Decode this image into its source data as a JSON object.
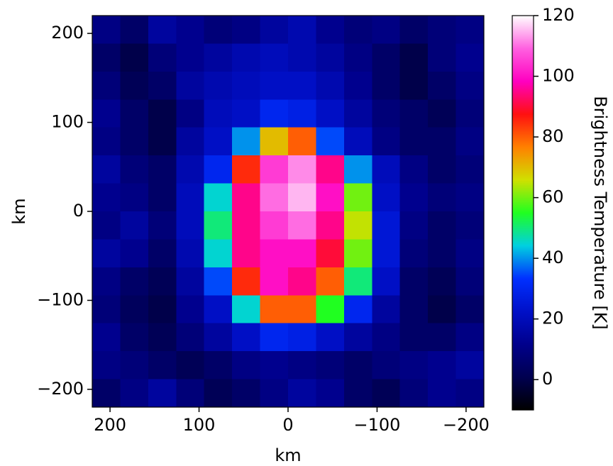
{
  "chart_data": {
    "type": "heatmap",
    "xlabel": "km",
    "ylabel": "km",
    "xlim": [
      220,
      -220
    ],
    "ylim": [
      -220,
      220
    ],
    "xticks": [
      200,
      100,
      0,
      {
        "value": -100,
        "label": "−100"
      },
      {
        "value": -200,
        "label": "−200"
      }
    ],
    "yticks": [
      {
        "value": -200,
        "label": "−200"
      },
      {
        "value": -100,
        "label": "−100"
      },
      0,
      100,
      200
    ],
    "colorbar_label": "Brightness Temperature [K]",
    "clim": [
      -10,
      120
    ],
    "cticks": [
      0,
      20,
      40,
      60,
      80,
      100,
      120
    ],
    "colormap": [
      "#000000",
      "#000050",
      "#00008c",
      "#0010c8",
      "#0030ff",
      "#00d0e0",
      "#20ff20",
      "#d0e000",
      "#ff8000",
      "#ff1010",
      "#ff00c0",
      "#ff60e0",
      "#ffffff"
    ],
    "values": [
      [
        10,
        5,
        15,
        12,
        8,
        10,
        15,
        18,
        12,
        8,
        10,
        5,
        8,
        10
      ],
      [
        5,
        0,
        8,
        12,
        15,
        18,
        20,
        18,
        15,
        10,
        5,
        0,
        8,
        12
      ],
      [
        8,
        2,
        5,
        15,
        18,
        20,
        22,
        22,
        18,
        12,
        5,
        0,
        5,
        10
      ],
      [
        12,
        5,
        0,
        10,
        20,
        22,
        30,
        28,
        22,
        15,
        8,
        5,
        2,
        8
      ],
      [
        10,
        5,
        0,
        15,
        22,
        40,
        70,
        80,
        35,
        20,
        10,
        5,
        5,
        10
      ],
      [
        15,
        8,
        5,
        18,
        30,
        85,
        105,
        112,
        95,
        40,
        20,
        10,
        5,
        8
      ],
      [
        12,
        10,
        5,
        20,
        45,
        95,
        110,
        115,
        100,
        60,
        22,
        12,
        8,
        10
      ],
      [
        10,
        15,
        8,
        20,
        50,
        95,
        105,
        110,
        95,
        65,
        25,
        10,
        5,
        8
      ],
      [
        15,
        12,
        5,
        18,
        45,
        95,
        100,
        100,
        90,
        60,
        25,
        8,
        5,
        10
      ],
      [
        10,
        5,
        2,
        15,
        35,
        85,
        100,
        95,
        80,
        50,
        22,
        5,
        2,
        8
      ],
      [
        8,
        3,
        0,
        12,
        22,
        45,
        80,
        80,
        55,
        30,
        15,
        5,
        0,
        5
      ],
      [
        12,
        5,
        2,
        8,
        15,
        22,
        30,
        28,
        22,
        15,
        10,
        5,
        5,
        10
      ],
      [
        10,
        8,
        5,
        2,
        5,
        10,
        12,
        10,
        8,
        5,
        8,
        10,
        12,
        15
      ],
      [
        5,
        10,
        15,
        8,
        2,
        5,
        10,
        15,
        12,
        5,
        2,
        8,
        12,
        10
      ]
    ]
  }
}
